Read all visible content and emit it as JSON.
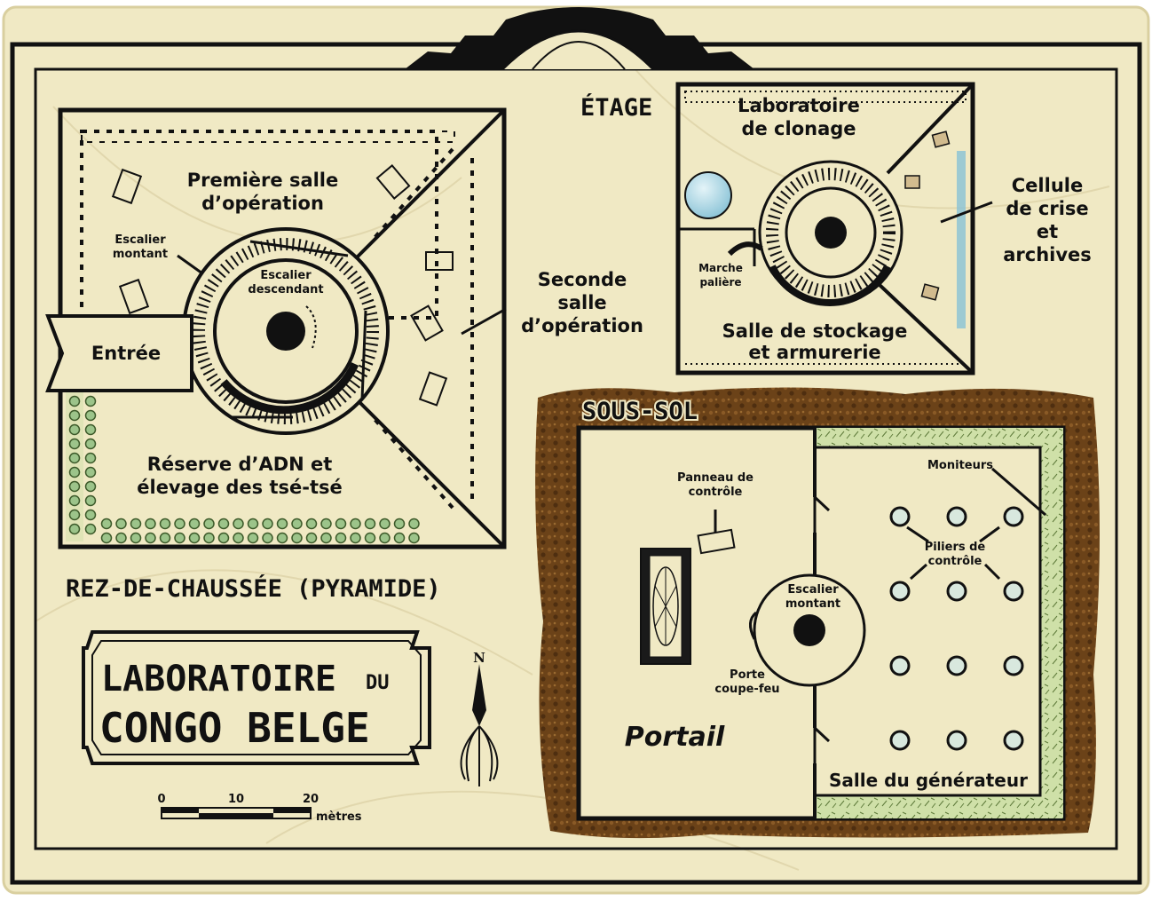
{
  "title": {
    "line1": "LABORATOIRE",
    "line1_small": "DU",
    "line2": "CONGO BELGE"
  },
  "sections": {
    "ground_floor": "REZ-DE-CHAUSSÉE (PYRAMIDE)",
    "upper_floor": "ÉTAGE",
    "basement": "SOUS-SOL"
  },
  "ground_floor": {
    "first_op_1": "Première salle",
    "first_op_2": "d’opération",
    "stairs_up_1": "Escalier",
    "stairs_up_2": "montant",
    "stairs_down_1": "Escalier",
    "stairs_down_2": "descendant",
    "second_op_1": "Seconde",
    "second_op_2": "salle",
    "second_op_3": "d’opération",
    "entrance": "Entrée",
    "reserve_1": "Réserve d’ADN et",
    "reserve_2": "élevage des tsé-tsé"
  },
  "upper_floor": {
    "clone_1": "Laboratoire",
    "clone_2": "de clonage",
    "crisis_1": "Cellule",
    "crisis_2": "de crise",
    "crisis_3": "et",
    "crisis_4": "archives",
    "landing_1": "Marche",
    "landing_2": "palière",
    "storage_1": "Salle de stockage",
    "storage_2": "et armurerie"
  },
  "basement": {
    "panel_1": "Panneau de",
    "panel_2": "contrôle",
    "monitors": "Moniteurs",
    "pillars_1": "Piliers de",
    "pillars_2": "contrôle",
    "stairs_1": "Escalier",
    "stairs_2": "montant",
    "door_1": "Porte",
    "door_2": "coupe-feu",
    "portal": "Portail",
    "generator": "Salle du générateur"
  },
  "compass": {
    "north": "N"
  },
  "scale": {
    "ticks": [
      "0",
      "10",
      "20"
    ],
    "unit": "mètres"
  },
  "colors": {
    "paper": "#f0e9c4",
    "ink": "#111111",
    "soil": "#6b4218",
    "green_dots": "#9cc48a",
    "hatch_green": "#cfe0a8",
    "water": "#a9d4e2"
  }
}
